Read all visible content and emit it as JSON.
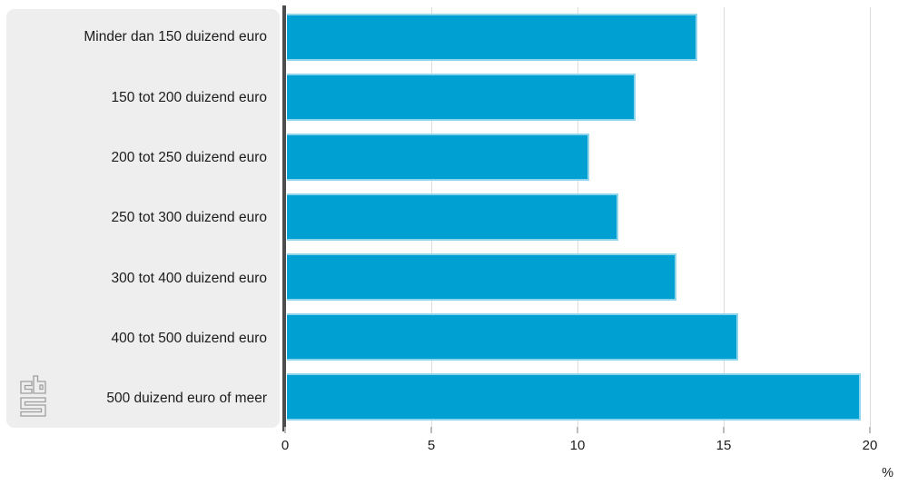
{
  "chart_data": {
    "type": "bar",
    "orientation": "horizontal",
    "title": "",
    "categories": [
      "Minder dan 150 duizend euro",
      "150 tot 200 duizend euro",
      "200 tot 250 duizend euro",
      "250 tot 300 duizend euro",
      "300 tot 400 duizend euro",
      "400 tot 500 duizend euro",
      "500 duizend euro of meer"
    ],
    "values": [
      14.1,
      12.0,
      10.4,
      11.4,
      13.4,
      15.5,
      19.7
    ],
    "xlabel": "%",
    "xlim": [
      0,
      20
    ],
    "xticks": [
      0,
      5,
      10,
      15,
      20
    ],
    "grid": true,
    "legend": "none"
  },
  "colors": {
    "bar": "#00a0d2",
    "bar_edge": "#8ed4ec",
    "label_panel": "#eeeeee",
    "axis_line": "#4d4d4d",
    "gridline": "#dcdcdc",
    "tick": "#bdbdbd",
    "text": "#1c1c1c",
    "logo": "#9e9e9e"
  },
  "branding": {
    "logo_name": "cbs-logo"
  }
}
